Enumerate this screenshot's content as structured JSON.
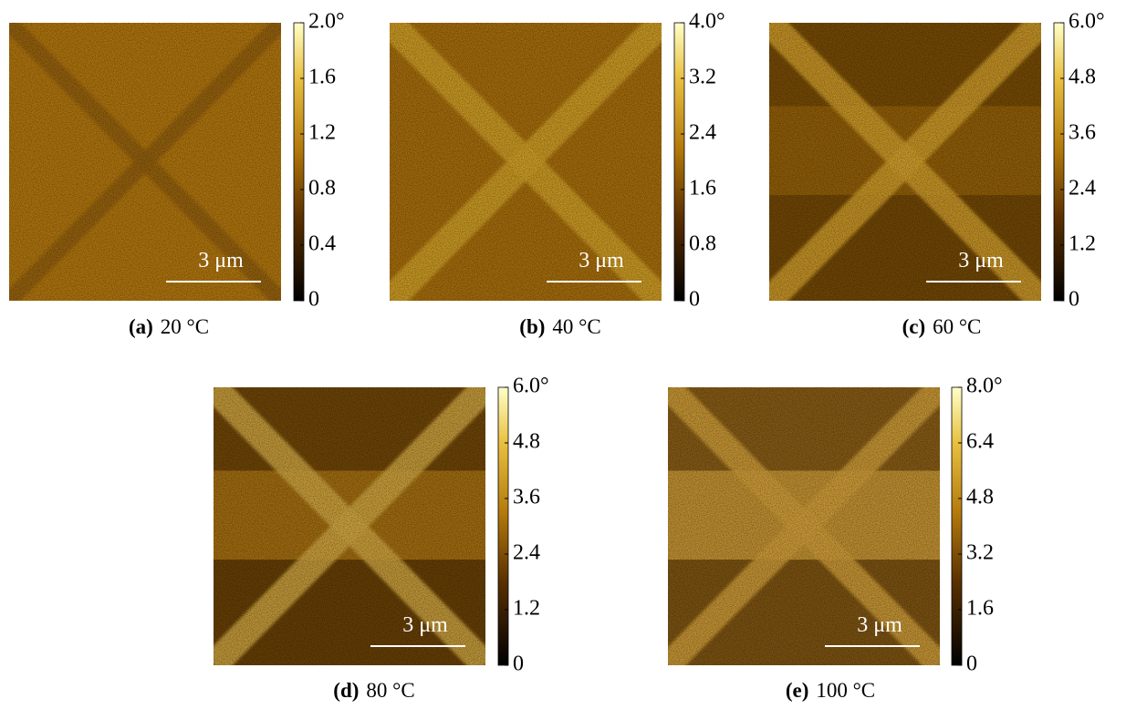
{
  "panels": [
    {
      "label": "(a)",
      "caption": "20 °C",
      "scale_bar": "3 μm",
      "colorbar_ticks": [
        "0",
        "0.4",
        "0.8",
        "1.2",
        "1.6",
        "2.0°"
      ]
    },
    {
      "label": "(b)",
      "caption": "40 °C",
      "scale_bar": "3 μm",
      "colorbar_ticks": [
        "0",
        "0.8",
        "1.6",
        "2.4",
        "3.2",
        "4.0°"
      ]
    },
    {
      "label": "(c)",
      "caption": "60 °C",
      "scale_bar": "3 μm",
      "colorbar_ticks": [
        "0",
        "1.2",
        "2.4",
        "3.6",
        "4.8",
        "6.0°"
      ]
    },
    {
      "label": "(d)",
      "caption": "80 °C",
      "scale_bar": "3 μm",
      "colorbar_ticks": [
        "0",
        "1.2",
        "2.4",
        "3.6",
        "4.8",
        "6.0°"
      ]
    },
    {
      "label": "(e)",
      "caption": "100 °C",
      "scale_bar": "3 μm",
      "colorbar_ticks": [
        "0",
        "1.6",
        "3.2",
        "4.8",
        "6.4",
        "8.0°"
      ]
    }
  ]
}
